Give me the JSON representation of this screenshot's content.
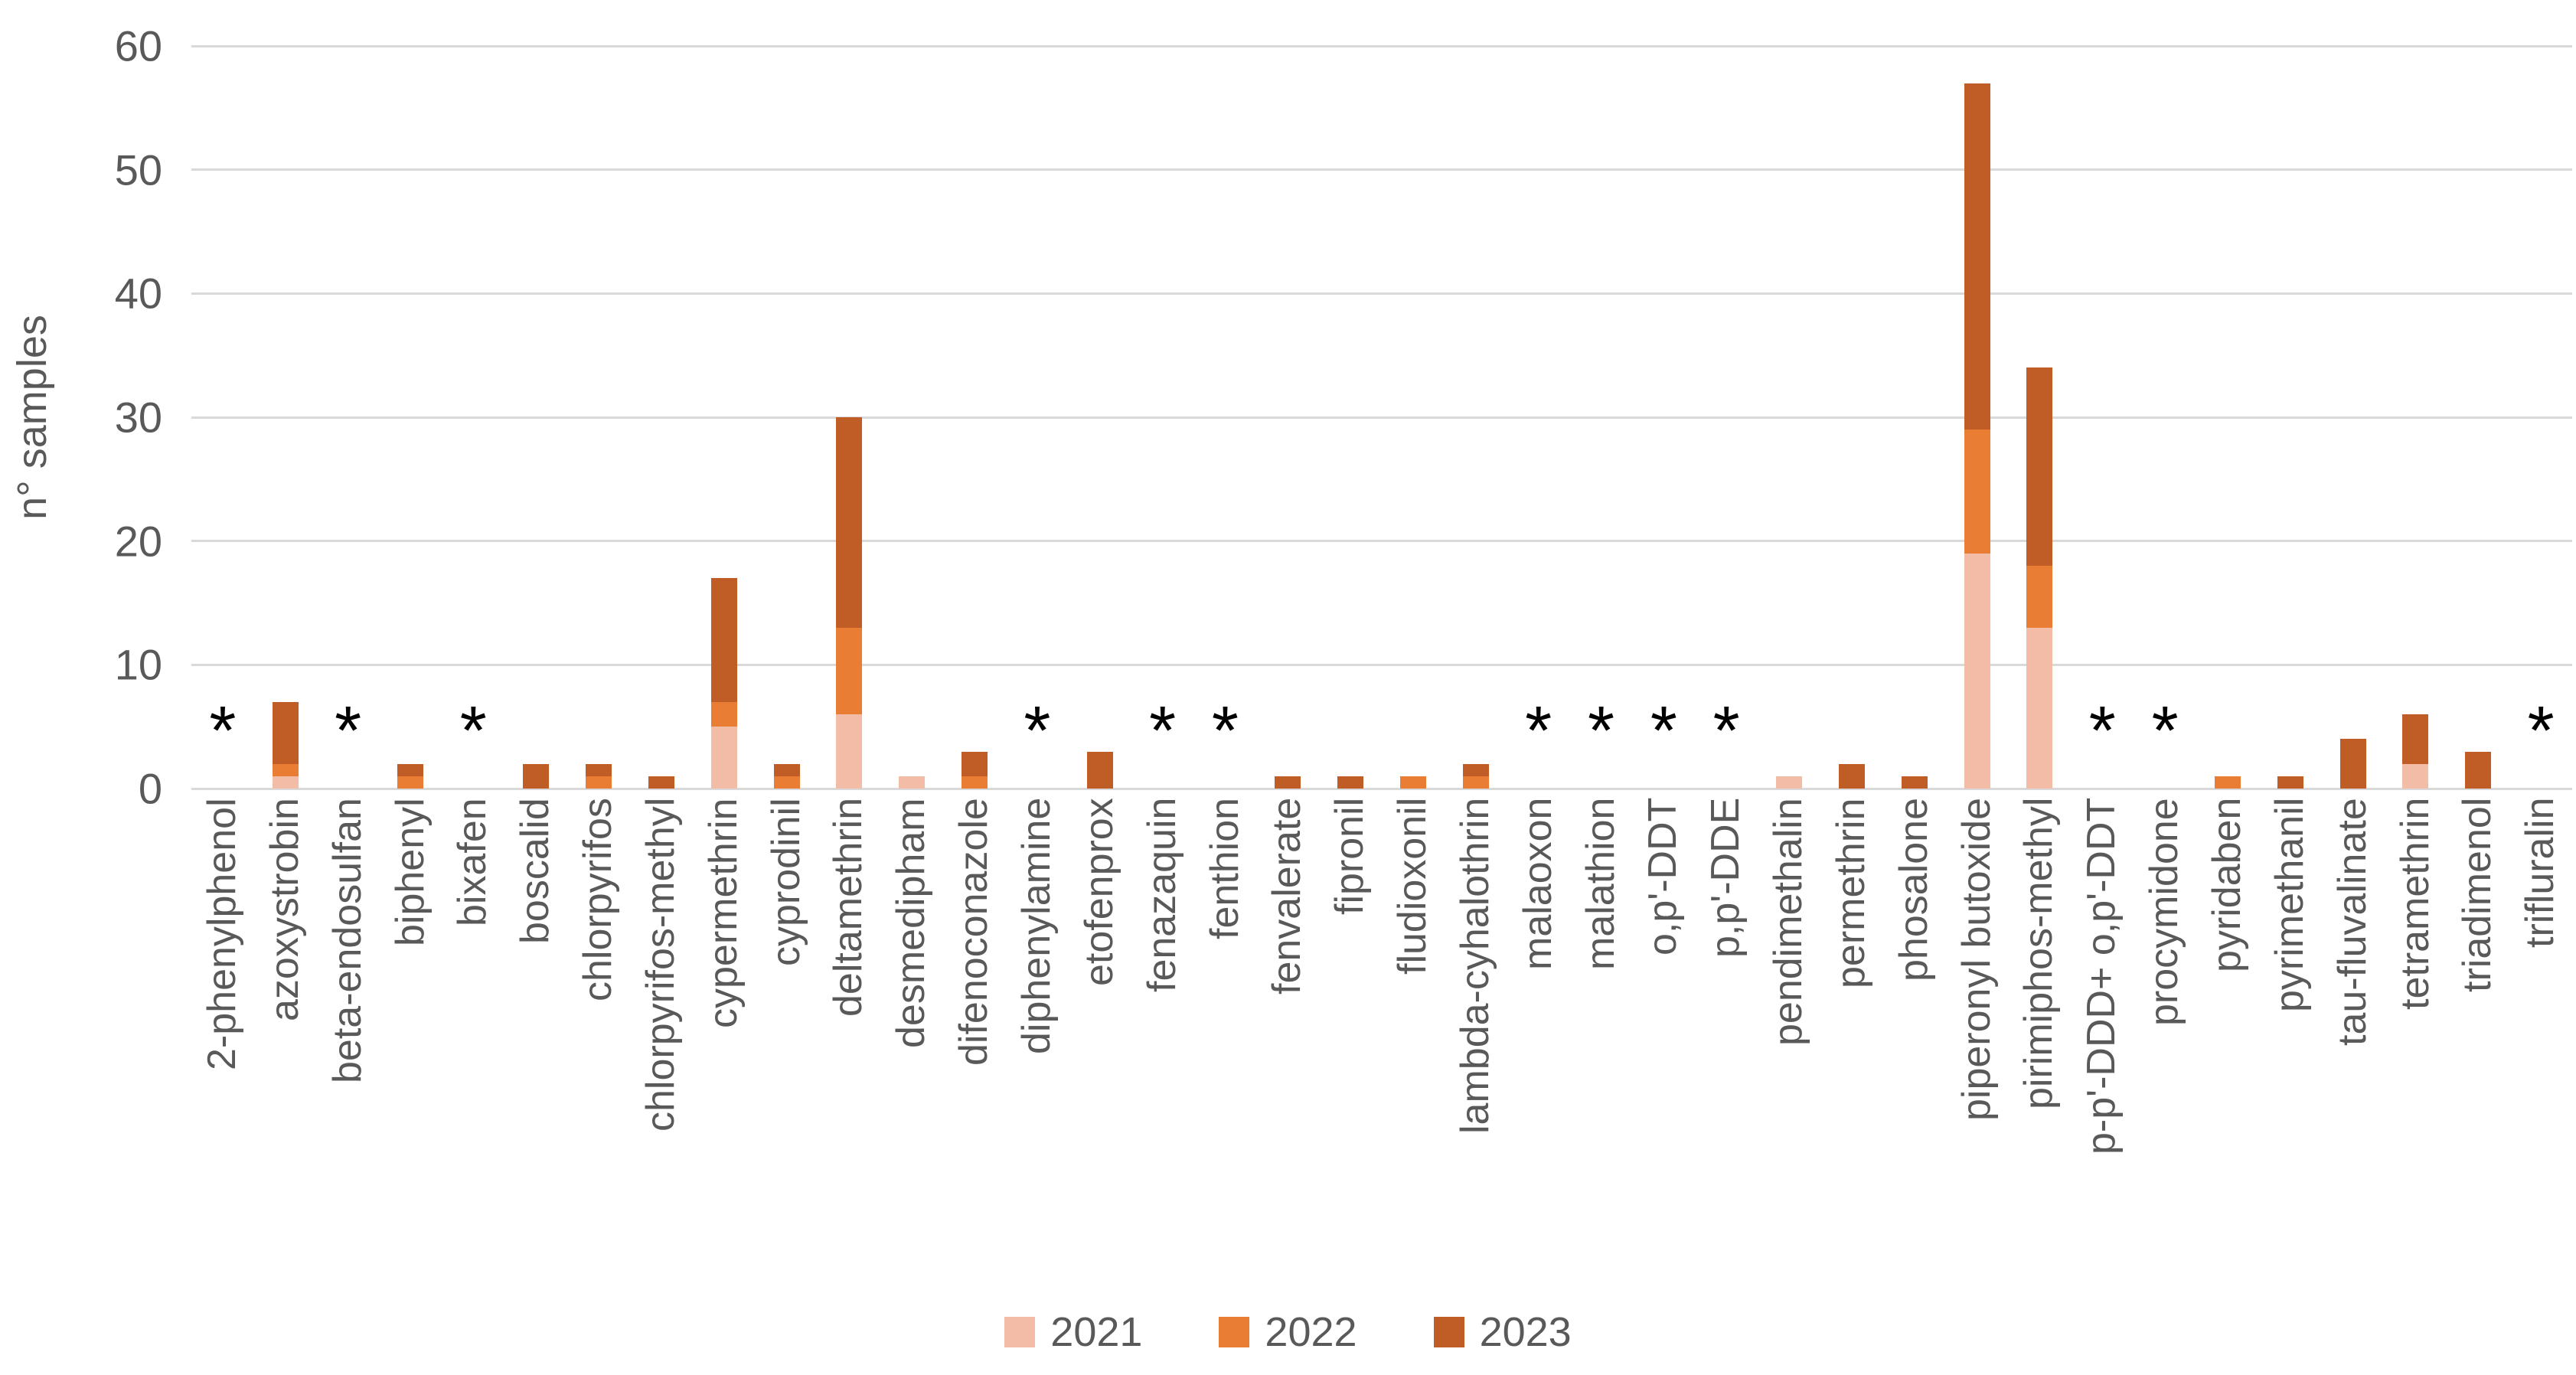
{
  "y_axis": {
    "title": "n° samples",
    "ticks": [
      0,
      10,
      20,
      30,
      40,
      50,
      60
    ],
    "max": 60
  },
  "annotation": {
    "star_symbol": "*"
  },
  "legend": {
    "items": [
      {
        "label": "2021",
        "color": "#F2BCA6"
      },
      {
        "label": "2022",
        "color": "#E97D34"
      },
      {
        "label": "2023",
        "color": "#C05C26"
      }
    ]
  },
  "chart_data": {
    "type": "bar",
    "stacked": true,
    "title": "",
    "xlabel": "",
    "ylabel": "n° samples",
    "ylim": [
      0,
      60
    ],
    "yticks": [
      0,
      10,
      20,
      30,
      40,
      50,
      60
    ],
    "grid": true,
    "legend_position": "bottom",
    "categories": [
      "2-phenylphenol",
      "azoxystrobin",
      "beta-endosulfan",
      "biphenyl",
      "bixafen",
      "boscalid",
      "chlorpyrifos",
      "chlorpyrifos-methyl",
      "cypermethrin",
      "cyprodinil",
      "deltamethrin",
      "desmedipham",
      "difenoconazole",
      "diphenylamine",
      "etofenprox",
      "fenazaquin",
      "fenthion",
      "fenvalerate",
      "fipronil",
      "fludioxonil",
      "lambda-cyhalothrin",
      "malaoxon",
      "malathion",
      "o,p'-DDT",
      "p,p'-DDE",
      "pendimethalin",
      "permethrin",
      "phosalone",
      "piperonyl butoxide",
      "pirimiphos-methyl",
      "p-p'-DDD+ o,p'-DDT",
      "procymidone",
      "pyridaben",
      "pyrimethanil",
      "tau-fluvalinate",
      "tetramethrin",
      "triadimenol",
      "trifluralin"
    ],
    "series": [
      {
        "name": "2021",
        "color": "#F2BCA6",
        "values": [
          0,
          1,
          0,
          0,
          0,
          0,
          0,
          0,
          5,
          0,
          6,
          1,
          0,
          0,
          0,
          0,
          0,
          0,
          0,
          0,
          0,
          0,
          0,
          0,
          0,
          1,
          0,
          0,
          19,
          13,
          0,
          0,
          0,
          0,
          0,
          2,
          0,
          0
        ]
      },
      {
        "name": "2022",
        "color": "#E97D34",
        "values": [
          0,
          1,
          0,
          1,
          0,
          0,
          1,
          0,
          2,
          1,
          7,
          0,
          1,
          0,
          0,
          0,
          0,
          0,
          0,
          1,
          1,
          0,
          0,
          0,
          0,
          0,
          0,
          0,
          10,
          5,
          0,
          0,
          1,
          0,
          0,
          0,
          0,
          0
        ]
      },
      {
        "name": "2023",
        "color": "#C05C26",
        "values": [
          0,
          5,
          0,
          1,
          0,
          2,
          1,
          1,
          10,
          1,
          17,
          0,
          2,
          0,
          3,
          0,
          0,
          1,
          1,
          0,
          1,
          0,
          0,
          0,
          0,
          0,
          2,
          1,
          28,
          16,
          0,
          0,
          0,
          1,
          4,
          4,
          3,
          0
        ]
      }
    ],
    "totals": [
      0,
      7,
      0,
      2,
      0,
      2,
      2,
      1,
      17,
      2,
      30,
      1,
      3,
      0,
      3,
      0,
      0,
      1,
      1,
      1,
      2,
      0,
      0,
      0,
      0,
      1,
      2,
      1,
      57,
      34,
      0,
      0,
      1,
      1,
      4,
      6,
      3,
      0
    ],
    "starred_categories": [
      "2-phenylphenol",
      "beta-endosulfan",
      "bixafen",
      "diphenylamine",
      "fenazaquin",
      "fenthion",
      "malaoxon",
      "malathion",
      "o,p'-DDT",
      "p,p'-DDE",
      "p-p'-DDD+ o,p'-DDT",
      "procymidone",
      "trifluralin"
    ]
  }
}
